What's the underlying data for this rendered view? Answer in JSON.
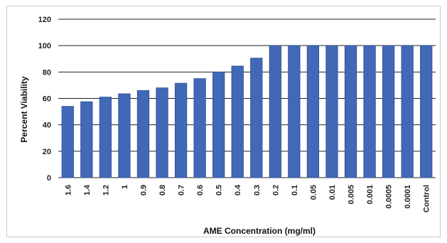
{
  "chart_data": {
    "type": "bar",
    "xlabel": "AME Concentration  (mg/ml)",
    "ylabel": "Percent Viability",
    "ylim": [
      0,
      120
    ],
    "yticks": [
      0,
      20,
      40,
      60,
      80,
      100,
      120
    ],
    "grid": true,
    "categories": [
      "1.6",
      "1.4",
      "1.2",
      "1",
      "0.9",
      "0.8",
      "0.7",
      "0.6",
      "0.5",
      "0.4",
      "0.3",
      "0.2",
      "0.1",
      "0.05",
      "0.01",
      "0.005",
      "0.001",
      "0.0005",
      "0.0001",
      "Control"
    ],
    "values": [
      54,
      57.5,
      61,
      63.5,
      66,
      68,
      71.5,
      75,
      80,
      84.5,
      90.5,
      100,
      100,
      100,
      100,
      100,
      100,
      100,
      100,
      100
    ],
    "colors": {
      "bar": "#4169b8",
      "bar_edge": "#2e4f8f",
      "grid": "#222222"
    }
  }
}
